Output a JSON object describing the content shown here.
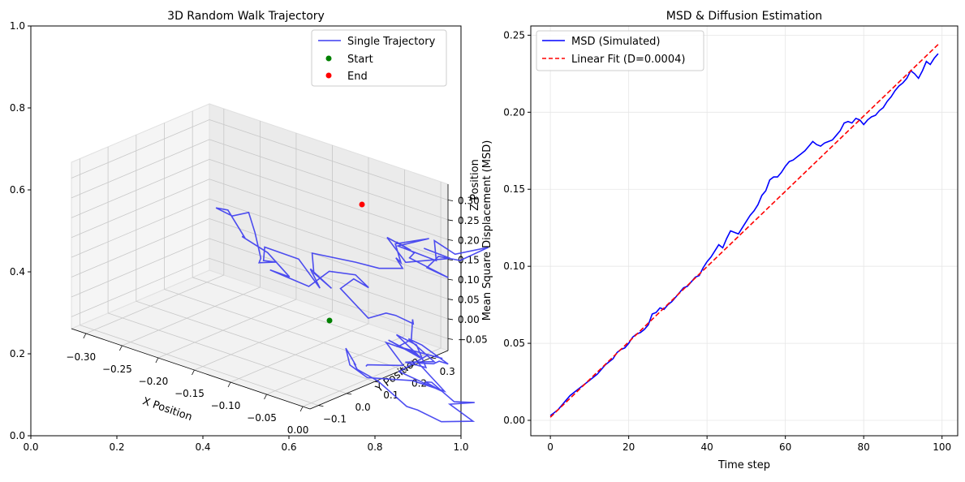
{
  "chart_data": [
    {
      "type": "line3d",
      "title": "3D Random Walk Trajectory",
      "outer_axes": {
        "xlim": [
          0,
          1
        ],
        "ylim": [
          0,
          1
        ],
        "xticks": [
          "0.0",
          "0.2",
          "0.4",
          "0.6",
          "0.8",
          "1.0"
        ],
        "yticks": [
          "0.0",
          "0.2",
          "0.4",
          "0.6",
          "0.8",
          "1.0"
        ]
      },
      "xlabel": "X Position",
      "ylabel": "Y Position",
      "zlabel": "Z Position",
      "xticks": [
        {
          "v": -0.3,
          "label": "−0.30"
        },
        {
          "v": -0.25,
          "label": "−0.25"
        },
        {
          "v": -0.2,
          "label": "−0.20"
        },
        {
          "v": -0.15,
          "label": "−0.15"
        },
        {
          "v": -0.1,
          "label": "−0.10"
        },
        {
          "v": -0.05,
          "label": "−0.05"
        },
        {
          "v": 0.0,
          "label": "0.00"
        }
      ],
      "yticks": [
        {
          "v": -0.1,
          "label": "−0.1"
        },
        {
          "v": 0.0,
          "label": "0.0"
        },
        {
          "v": 0.1,
          "label": "0.1"
        },
        {
          "v": 0.2,
          "label": "0.2"
        },
        {
          "v": 0.3,
          "label": "0.3"
        }
      ],
      "zticks": [
        {
          "v": -0.05,
          "label": "−0.05"
        },
        {
          "v": 0.0,
          "label": "0.00"
        },
        {
          "v": 0.05,
          "label": "0.05"
        },
        {
          "v": 0.1,
          "label": "0.10"
        },
        {
          "v": 0.15,
          "label": "0.15"
        },
        {
          "v": 0.2,
          "label": "0.20"
        },
        {
          "v": 0.25,
          "label": "0.25"
        },
        {
          "v": 0.3,
          "label": "0.30"
        }
      ],
      "legend": {
        "position": "top-right",
        "entries": [
          {
            "label": "Single Trajectory",
            "color": "#3b3bf0",
            "kind": "line"
          },
          {
            "label": "Start",
            "color": "#008000",
            "kind": "marker"
          },
          {
            "label": "End",
            "color": "#ff0000",
            "kind": "marker"
          }
        ]
      },
      "trajectory_color": "#3b3bf0",
      "start_color": "#008000",
      "end_color": "#ff0000"
    },
    {
      "type": "line",
      "title": "MSD & Diffusion Estimation",
      "xlabel": "Time step",
      "ylabel": "Mean Square Displacement (MSD)",
      "xlim": [
        -5,
        104
      ],
      "ylim": [
        -0.01,
        0.256
      ],
      "xticks": [
        {
          "v": 0,
          "label": "0"
        },
        {
          "v": 20,
          "label": "20"
        },
        {
          "v": 40,
          "label": "40"
        },
        {
          "v": 60,
          "label": "60"
        },
        {
          "v": 80,
          "label": "80"
        },
        {
          "v": 100,
          "label": "100"
        }
      ],
      "yticks": [
        {
          "v": 0.0,
          "label": "0.00"
        },
        {
          "v": 0.05,
          "label": "0.05"
        },
        {
          "v": 0.1,
          "label": "0.10"
        },
        {
          "v": 0.15,
          "label": "0.15"
        },
        {
          "v": 0.2,
          "label": "0.20"
        },
        {
          "v": 0.25,
          "label": "0.25"
        }
      ],
      "grid": true,
      "legend": {
        "position": "top-left",
        "entries": [
          {
            "label": "MSD (Simulated)",
            "color": "#0000ff",
            "style": "solid"
          },
          {
            "label": "Linear Fit (D=0.0004)",
            "color": "#ff0000",
            "style": "dashed"
          }
        ]
      },
      "series": [
        {
          "name": "MSD (Simulated)",
          "color": "#0000ff",
          "x": [
            0,
            1,
            2,
            3,
            4,
            5,
            6,
            7,
            8,
            9,
            10,
            11,
            12,
            13,
            14,
            15,
            16,
            17,
            18,
            19,
            20,
            21,
            22,
            23,
            24,
            25,
            26,
            27,
            28,
            29,
            30,
            31,
            32,
            33,
            34,
            35,
            36,
            37,
            38,
            39,
            40,
            41,
            42,
            43,
            44,
            45,
            46,
            47,
            48,
            49,
            50,
            51,
            52,
            53,
            54,
            55,
            56,
            57,
            58,
            59,
            60,
            61,
            62,
            63,
            64,
            65,
            66,
            67,
            68,
            69,
            70,
            71,
            72,
            73,
            74,
            75,
            76,
            77,
            78,
            79,
            80,
            81,
            82,
            83,
            84,
            85,
            86,
            87,
            88,
            89,
            90,
            91,
            92,
            93,
            94,
            95,
            96,
            97,
            98,
            99
          ],
          "y": [
            0.003,
            0.005,
            0.007,
            0.01,
            0.013,
            0.016,
            0.018,
            0.02,
            0.022,
            0.024,
            0.026,
            0.028,
            0.03,
            0.033,
            0.036,
            0.038,
            0.04,
            0.044,
            0.046,
            0.047,
            0.05,
            0.054,
            0.056,
            0.057,
            0.059,
            0.062,
            0.069,
            0.07,
            0.073,
            0.072,
            0.075,
            0.077,
            0.08,
            0.083,
            0.086,
            0.087,
            0.09,
            0.093,
            0.094,
            0.099,
            0.103,
            0.106,
            0.11,
            0.114,
            0.112,
            0.118,
            0.123,
            0.122,
            0.121,
            0.125,
            0.129,
            0.133,
            0.136,
            0.14,
            0.146,
            0.149,
            0.156,
            0.158,
            0.158,
            0.161,
            0.165,
            0.168,
            0.169,
            0.171,
            0.173,
            0.175,
            0.178,
            0.181,
            0.179,
            0.178,
            0.18,
            0.181,
            0.182,
            0.185,
            0.188,
            0.193,
            0.194,
            0.193,
            0.196,
            0.195,
            0.192,
            0.195,
            0.197,
            0.198,
            0.201,
            0.203,
            0.207,
            0.21,
            0.214,
            0.217,
            0.219,
            0.222,
            0.227,
            0.225,
            0.222,
            0.227,
            0.233,
            0.231,
            0.235,
            0.238
          ]
        },
        {
          "name": "Linear Fit (D=0.0004)",
          "color": "#ff0000",
          "style": "dashed",
          "x": [
            0,
            99
          ],
          "y": [
            0.002,
            0.244
          ]
        }
      ]
    }
  ]
}
